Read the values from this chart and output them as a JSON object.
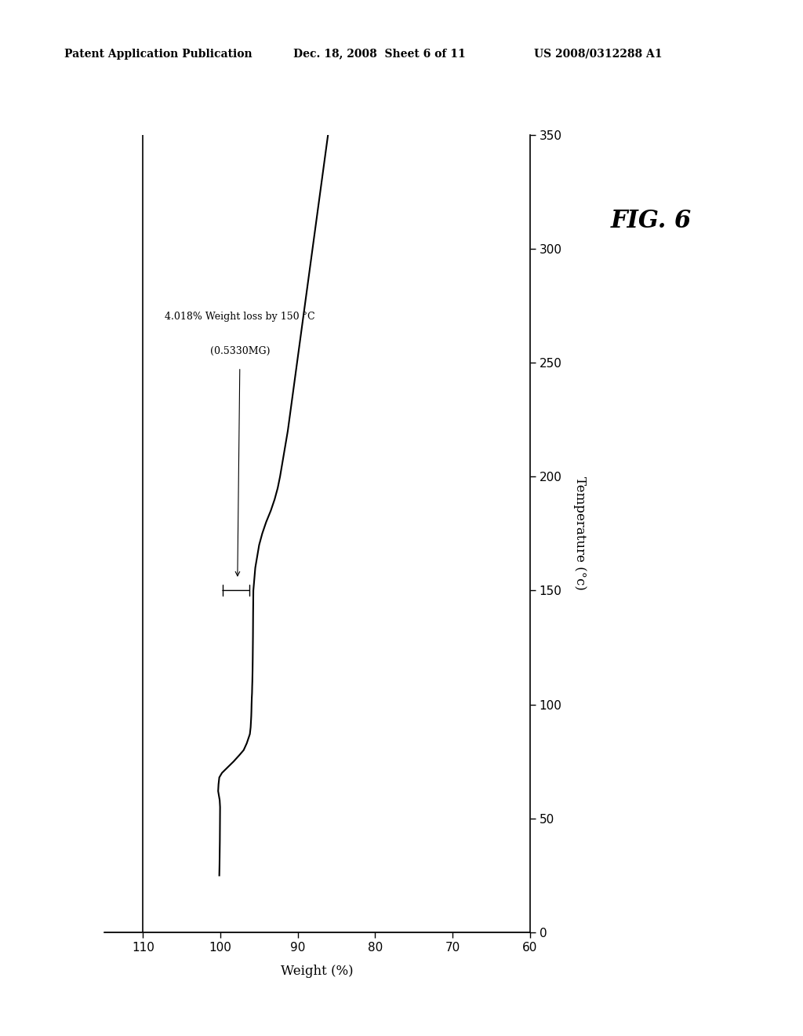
{
  "title": "FIG. 6",
  "x_label": "Temperature (°c)",
  "y_label": "Weight (%)",
  "header_left": "Patent Application Publication",
  "header_center": "Dec. 18, 2008  Sheet 6 of 11",
  "header_right": "US 2008/0312288 A1",
  "temp_ticks": [
    0,
    50,
    100,
    150,
    200,
    250,
    300,
    350
  ],
  "weight_ticks": [
    60,
    70,
    80,
    90,
    100,
    110
  ],
  "temp_lim": [
    0,
    350
  ],
  "weight_lim": [
    60,
    115
  ],
  "annotation_line1": "4.018% Weight loss by 150 °C",
  "annotation_line2": "(0.5330MG)",
  "background_color": "#ffffff",
  "line_color": "#000000",
  "curve_temps": [
    25,
    30,
    35,
    40,
    45,
    50,
    55,
    58,
    60,
    62,
    65,
    68,
    70,
    72,
    75,
    78,
    80,
    83,
    85,
    87,
    90,
    93,
    95,
    97,
    100,
    103,
    105,
    108,
    110,
    115,
    120,
    130,
    140,
    150,
    160,
    170,
    175,
    180,
    185,
    190,
    195,
    200,
    210,
    220,
    230,
    240,
    250,
    260,
    270,
    280,
    290,
    300,
    310,
    320,
    330,
    340,
    350
  ],
  "curve_weights": [
    100.15,
    100.12,
    100.1,
    100.08,
    100.07,
    100.06,
    100.05,
    100.1,
    100.2,
    100.3,
    100.25,
    100.15,
    99.8,
    99.2,
    98.3,
    97.5,
    97.0,
    96.6,
    96.4,
    96.2,
    96.1,
    96.05,
    96.02,
    96.0,
    95.98,
    95.95,
    95.92,
    95.9,
    95.88,
    95.85,
    95.83,
    95.8,
    95.78,
    95.75,
    95.5,
    95.0,
    94.6,
    94.1,
    93.5,
    93.0,
    92.6,
    92.3,
    91.8,
    91.3,
    90.9,
    90.5,
    90.1,
    89.7,
    89.3,
    88.9,
    88.5,
    88.1,
    87.7,
    87.3,
    86.9,
    86.5,
    86.1
  ]
}
